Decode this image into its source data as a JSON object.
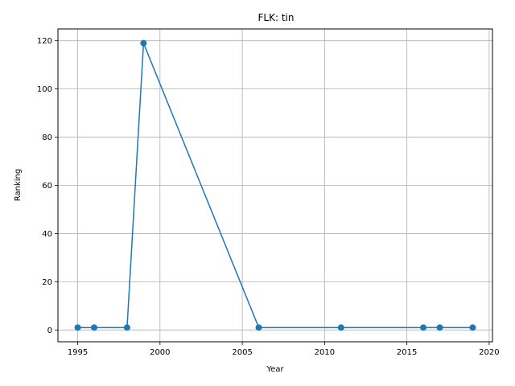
{
  "chart_data": {
    "type": "line",
    "title": "FLK: tin",
    "xlabel": "Year",
    "ylabel": "Ranking",
    "x": [
      1995,
      1996,
      1998,
      1999,
      2006,
      2011,
      2016,
      2017,
      2019
    ],
    "series": [
      {
        "values": [
          1,
          1,
          1,
          119,
          1,
          1,
          1,
          1,
          1
        ]
      }
    ],
    "xlim": [
      1993.8,
      2020.2
    ],
    "ylim": [
      -4.9,
      124.9
    ],
    "xticks": [
      1995,
      2000,
      2005,
      2010,
      2015,
      2020
    ],
    "yticks": [
      0,
      20,
      40,
      60,
      80,
      100,
      120
    ],
    "grid": true,
    "line_color": "#1f77b4"
  }
}
